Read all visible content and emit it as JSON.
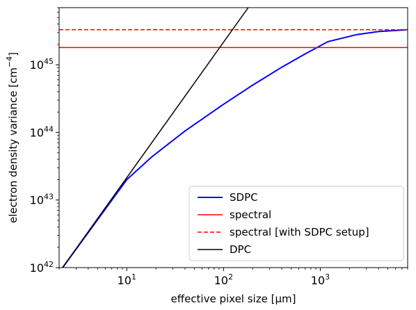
{
  "chart_data": {
    "type": "line",
    "title": "",
    "xlabel": "effective pixel size [µm]",
    "ylabel": "electron density variance [cm",
    "ylabel_exponent": "−4",
    "ylabel_close": "]",
    "xscale": "log",
    "yscale": "log",
    "xlim": [
      2,
      8000
    ],
    "ylim": [
      1e+42,
      7e+45
    ],
    "x_ticks": [
      {
        "value": 10,
        "base": "10",
        "exp": "1"
      },
      {
        "value": 100,
        "base": "10",
        "exp": "2"
      },
      {
        "value": 1000,
        "base": "10",
        "exp": "3"
      }
    ],
    "y_ticks": [
      {
        "value": 1e+42,
        "base": "10",
        "exp": "42"
      },
      {
        "value": 1e+43,
        "base": "10",
        "exp": "43"
      },
      {
        "value": 1e+44,
        "base": "10",
        "exp": "44"
      },
      {
        "value": 1e+45,
        "base": "10",
        "exp": "45"
      }
    ],
    "grid": false,
    "legend_position": "lower right",
    "series": [
      {
        "name": "SDPC",
        "color": "#0000ff",
        "style": "solid",
        "x": [
          2,
          10,
          18,
          40,
          100,
          200,
          400,
          700,
          1200,
          2400,
          4000,
          8000
        ],
        "y": [
          8.5e+41,
          2e+43,
          4.3e+43,
          1.05e+44,
          2.6e+44,
          5e+44,
          9.2e+44,
          1.45e+45,
          2.2e+45,
          2.8e+45,
          3.1e+45,
          3.3e+45
        ]
      },
      {
        "name": "spectral",
        "color": "#ff0000",
        "style": "solid",
        "x": [
          2,
          8000
        ],
        "y": [
          1.8e+45,
          1.8e+45
        ]
      },
      {
        "name": "spectral [with SDPC setup]",
        "color": "#ff0000",
        "style": "dashed",
        "x": [
          2,
          8000
        ],
        "y": [
          3.3e+45,
          3.3e+45
        ]
      },
      {
        "name": "DPC",
        "color": "#000000",
        "style": "solid",
        "x": [
          2,
          180
        ],
        "y": [
          8.5e+41,
          7e+45
        ]
      }
    ]
  }
}
